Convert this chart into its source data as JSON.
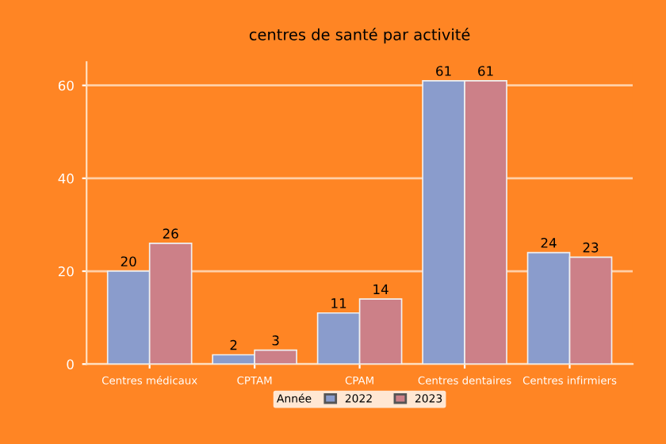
{
  "chart_data": {
    "type": "bar",
    "title": "centres de santé par activité",
    "categories": [
      "Centres médicaux",
      "CPTAM",
      "CPAM",
      "Centres dentaires",
      "Centres infirmiers"
    ],
    "series": [
      {
        "name": "2022",
        "color": "#8a9ccc",
        "values": [
          20,
          2,
          11,
          61,
          24
        ]
      },
      {
        "name": "2023",
        "color": "#cc8088",
        "values": [
          26,
          3,
          14,
          61,
          23
        ]
      }
    ],
    "legend_title": "Année",
    "legend": "bottom",
    "ylim": [
      0,
      65
    ],
    "yticks": [
      0,
      20,
      40,
      60
    ],
    "grid": "y",
    "data_labels": true
  }
}
